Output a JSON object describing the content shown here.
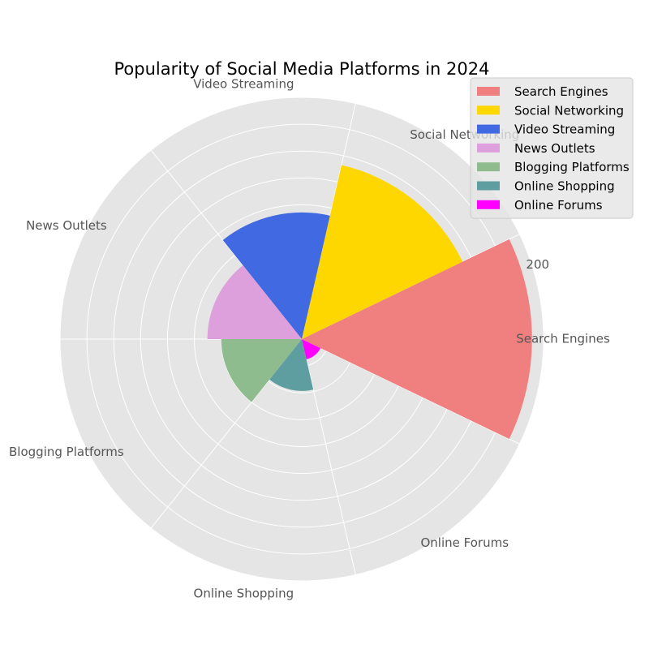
{
  "chart_data": {
    "type": "polar-bar",
    "title": "Popularity of Social Media Platforms in 2024",
    "categories": [
      "Search Engines",
      "Social Networking",
      "Video Streaming",
      "News Outlets",
      "Blogging Platforms",
      "Online Shopping",
      "Online Forums"
    ],
    "values": [
      200,
      155,
      110,
      82,
      70,
      45,
      18
    ],
    "colors": [
      "#F08080",
      "#FFD700",
      "#4169E1",
      "#DDA0DD",
      "#8FBC8F",
      "#5F9EA0",
      "#FF00FF"
    ],
    "rlim": [
      0,
      210
    ],
    "radial_tick_label": "200",
    "grid": true,
    "legend_position": "top-right"
  }
}
